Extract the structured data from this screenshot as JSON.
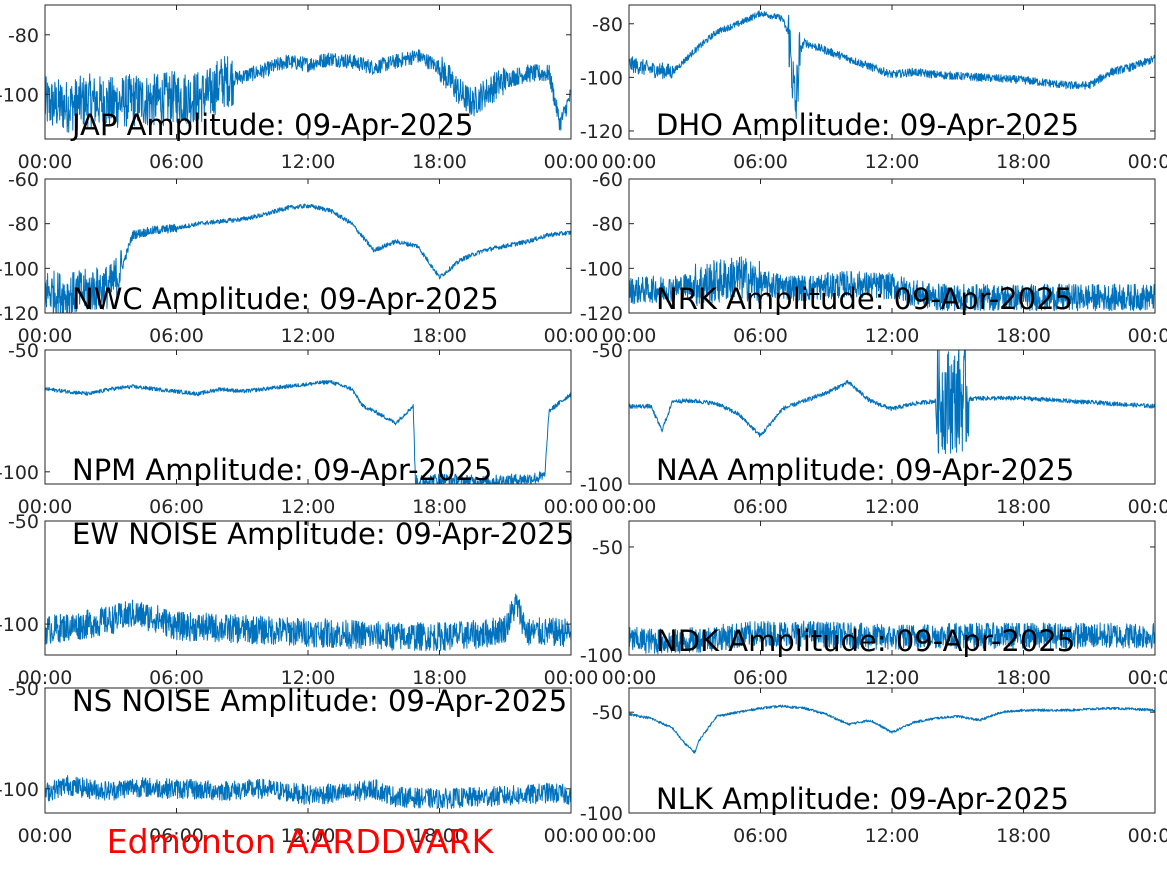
{
  "figure": {
    "station_label": "Edmonton AARDDVARK",
    "trace_color": "#0072bd",
    "station_color": "#ff0000"
  },
  "chart_data": [
    {
      "type": "line",
      "title": "JAP Amplitude: 09-Apr-2025",
      "xlabel": "",
      "ylabel": "",
      "xlim": [
        0,
        24
      ],
      "ylim": [
        -115,
        -70
      ],
      "xticks": [
        0,
        6,
        12,
        18,
        24
      ],
      "xtick_labels": [
        "00:00",
        "06:00",
        "12:00",
        "18:00",
        "00:00"
      ],
      "yticks": [
        -80,
        -100
      ],
      "ytick_labels": [
        "-80",
        "-100"
      ],
      "noise": [
        [
          0,
          8.6,
          9
        ],
        [
          8.6,
          18,
          2.5
        ],
        [
          18,
          21,
          5
        ],
        [
          21,
          24,
          3
        ]
      ],
      "x": [
        0,
        1,
        2,
        3,
        4,
        5,
        6,
        7,
        7.5,
        8,
        9,
        10,
        11,
        12,
        13,
        14,
        15,
        16,
        17,
        18,
        19,
        19.5,
        20,
        21,
        22,
        23,
        23.5,
        24
      ],
      "y": [
        -103,
        -104,
        -102,
        -103,
        -102,
        -102,
        -101,
        -101,
        -100,
        -96,
        -94,
        -92,
        -89,
        -90,
        -88,
        -89,
        -91,
        -89,
        -87,
        -91,
        -100,
        -103,
        -100,
        -95,
        -93,
        -93,
        -110,
        -100
      ]
    },
    {
      "type": "line",
      "title": "DHO Amplitude: 09-Apr-2025",
      "xlabel": "",
      "ylabel": "",
      "xlim": [
        0,
        24
      ],
      "ylim": [
        -123,
        -73
      ],
      "xticks": [
        0,
        6,
        12,
        18,
        24
      ],
      "xtick_labels": [
        "00:00",
        "06:00",
        "12:00",
        "18:00",
        "00:00"
      ],
      "yticks": [
        -80,
        -100,
        -120
      ],
      "ytick_labels": [
        "-80",
        "-100",
        "-120"
      ],
      "noise": [
        [
          0,
          2,
          3
        ],
        [
          2,
          7.2,
          1.2
        ],
        [
          7.2,
          7.8,
          12
        ],
        [
          7.8,
          24,
          1.5
        ]
      ],
      "x": [
        0,
        1,
        2,
        3,
        4,
        5,
        6,
        7,
        7.3,
        7.6,
        7.8,
        8,
        9,
        10,
        11,
        12,
        13,
        14,
        16,
        18,
        20,
        21,
        22,
        23,
        24
      ],
      "y": [
        -95,
        -97,
        -98,
        -90,
        -83,
        -80,
        -76,
        -78,
        -85,
        -112,
        -90,
        -87,
        -90,
        -93,
        -96,
        -99,
        -98,
        -99,
        -100,
        -101,
        -103,
        -103,
        -98,
        -96,
        -93
      ]
    },
    {
      "type": "line",
      "title": "NWC Amplitude: 09-Apr-2025",
      "xlabel": "",
      "ylabel": "",
      "xlim": [
        0,
        24
      ],
      "ylim": [
        -120,
        -60
      ],
      "xticks": [
        0,
        6,
        12,
        18,
        24
      ],
      "xtick_labels": [
        "00:00",
        "06:00",
        "12:00",
        "18:00",
        "00:00"
      ],
      "yticks": [
        -60,
        -80,
        -100,
        -120
      ],
      "ytick_labels": [
        "-60",
        "-80",
        "-100",
        "-120"
      ],
      "noise": [
        [
          0,
          3.5,
          10
        ],
        [
          3.5,
          6,
          2
        ],
        [
          6,
          24,
          1
        ]
      ],
      "x": [
        0,
        1,
        2,
        3,
        3.5,
        4,
        5,
        6,
        7,
        8,
        9,
        10,
        11,
        12,
        13,
        14,
        15,
        16,
        17,
        18,
        19,
        20,
        21,
        22,
        23,
        24
      ],
      "y": [
        -110,
        -112,
        -110,
        -108,
        -100,
        -85,
        -83,
        -82,
        -80,
        -79,
        -78,
        -76,
        -73,
        -72,
        -74,
        -80,
        -92,
        -88,
        -90,
        -104,
        -96,
        -92,
        -90,
        -88,
        -85,
        -84
      ]
    },
    {
      "type": "line",
      "title": "NRK Amplitude: 09-Apr-2025",
      "xlabel": "",
      "ylabel": "",
      "xlim": [
        0,
        24
      ],
      "ylim": [
        -120,
        -60
      ],
      "xticks": [
        0,
        6,
        12,
        18,
        24
      ],
      "xtick_labels": [
        "00:00",
        "06:00",
        "12:00",
        "18:00",
        "00:00"
      ],
      "yticks": [
        -60,
        -80,
        -100,
        -120
      ],
      "ytick_labels": [
        "-60",
        "-80",
        "-100",
        "-120"
      ],
      "noise": [
        [
          0,
          3,
          6
        ],
        [
          3,
          6,
          10
        ],
        [
          6,
          12,
          6
        ],
        [
          12,
          24,
          6
        ]
      ],
      "x": [
        0,
        2,
        4,
        5,
        6,
        8,
        10,
        12,
        13,
        14,
        16,
        18,
        20,
        22,
        24
      ],
      "y": [
        -110,
        -109,
        -106,
        -104,
        -107,
        -109,
        -107,
        -108,
        -111,
        -113,
        -113,
        -113,
        -113,
        -113,
        -113
      ]
    },
    {
      "type": "line",
      "title": "NPM Amplitude: 09-Apr-2025",
      "xlabel": "",
      "ylabel": "",
      "xlim": [
        0,
        24
      ],
      "ylim": [
        -105,
        -50
      ],
      "xticks": [
        0,
        6,
        12,
        18,
        24
      ],
      "xtick_labels": [
        "00:00",
        "06:00",
        "12:00",
        "18:00",
        "00:00"
      ],
      "yticks": [
        -50,
        -100
      ],
      "ytick_labels": [
        "-50",
        "-100"
      ],
      "noise": [
        [
          0,
          16.8,
          0.8
        ],
        [
          16.8,
          22.8,
          2.5
        ],
        [
          22.8,
          24,
          1
        ]
      ],
      "x": [
        0,
        1,
        2,
        3,
        4,
        5,
        6,
        7,
        8,
        9,
        10,
        11,
        12,
        13,
        14,
        14.5,
        15,
        16,
        16.8,
        16.9,
        18,
        20,
        22,
        22.8,
        23,
        24
      ],
      "y": [
        -66,
        -67,
        -68,
        -66,
        -65,
        -66,
        -67,
        -68,
        -66,
        -67,
        -66,
        -65,
        -64,
        -63,
        -66,
        -73,
        -75,
        -80,
        -73,
        -104,
        -103,
        -104,
        -103,
        -102,
        -75,
        -68
      ]
    },
    {
      "type": "line",
      "title": "NAA Amplitude: 09-Apr-2025",
      "xlabel": "",
      "ylabel": "",
      "xlim": [
        0,
        24
      ],
      "ylim": [
        -100,
        -50
      ],
      "xticks": [
        0,
        6,
        12,
        18,
        24
      ],
      "xtick_labels": [
        "00:00",
        "06:00",
        "12:00",
        "18:00",
        "00:00"
      ],
      "yticks": [
        -50,
        -100
      ],
      "ytick_labels": [
        "-50",
        "-100"
      ],
      "noise": [
        [
          0,
          14,
          0.8
        ],
        [
          14,
          15.5,
          20
        ],
        [
          15.5,
          24,
          0.8
        ]
      ],
      "x": [
        0,
        1,
        1.5,
        2,
        3,
        4,
        5,
        5.5,
        6,
        7,
        8,
        9,
        10,
        11,
        12,
        13,
        14,
        16,
        18,
        20,
        22,
        24
      ],
      "y": [
        -71,
        -71,
        -80,
        -69,
        -69,
        -70,
        -74,
        -78,
        -82,
        -72,
        -69,
        -66,
        -62,
        -69,
        -72,
        -70,
        -69,
        -68,
        -68,
        -69,
        -70,
        -71
      ]
    },
    {
      "type": "line",
      "title": "EW NOISE Amplitude: 09-Apr-2025",
      "xlabel": "",
      "ylabel": "",
      "xlim": [
        0,
        24
      ],
      "ylim": [
        -115,
        -50
      ],
      "xticks": [
        0,
        6,
        12,
        18,
        24
      ],
      "xtick_labels": [
        "00:00",
        "06:00",
        "12:00",
        "18:00",
        "00:00"
      ],
      "yticks": [
        -50,
        -100
      ],
      "ytick_labels": [
        "-50",
        "-100"
      ],
      "noise": [
        [
          0,
          24,
          7
        ]
      ],
      "x": [
        0,
        2,
        3,
        4,
        5,
        6,
        8,
        10,
        12,
        14,
        16,
        18,
        20,
        21,
        21.5,
        22,
        23,
        24
      ],
      "y": [
        -103,
        -100,
        -98,
        -95,
        -97,
        -101,
        -102,
        -103,
        -104,
        -105,
        -106,
        -106,
        -105,
        -102,
        -90,
        -104,
        -104,
        -104
      ]
    },
    {
      "type": "line",
      "title": "NDK Amplitude: 09-Apr-2025",
      "xlabel": "",
      "ylabel": "",
      "xlim": [
        0,
        24
      ],
      "ylim": [
        -100,
        -38
      ],
      "xticks": [
        0,
        6,
        12,
        18,
        24
      ],
      "xtick_labels": [
        "00:00",
        "06:00",
        "12:00",
        "18:00",
        "00:00"
      ],
      "yticks": [
        -50,
        -100
      ],
      "ytick_labels": [
        "-50",
        "-100"
      ],
      "noise": [
        [
          0,
          24,
          6
        ]
      ],
      "x": [
        0,
        2,
        4,
        6,
        8,
        10,
        12,
        14,
        16,
        18,
        20,
        22,
        24
      ],
      "y": [
        -93,
        -94,
        -92,
        -90,
        -90,
        -91,
        -92,
        -91,
        -91,
        -91,
        -91,
        -91,
        -91
      ]
    },
    {
      "type": "line",
      "title": "NS NOISE Amplitude: 09-Apr-2025",
      "xlabel": "",
      "ylabel": "",
      "xlim": [
        0,
        24
      ],
      "ylim": [
        -112,
        -50
      ],
      "xticks": [
        0,
        6,
        12,
        18,
        24
      ],
      "xtick_labels": [
        "00:00",
        "06:00",
        "12:00",
        "18:00",
        "00:00"
      ],
      "yticks": [
        -50,
        -100
      ],
      "ytick_labels": [
        "-50",
        "-100"
      ],
      "noise": [
        [
          0,
          24,
          5
        ]
      ],
      "x": [
        0,
        1,
        2,
        3,
        4,
        6,
        8,
        10,
        12,
        14,
        15,
        16,
        18,
        20,
        22,
        23,
        24
      ],
      "y": [
        -102,
        -98,
        -100,
        -101,
        -99,
        -100,
        -101,
        -100,
        -103,
        -102,
        -100,
        -104,
        -105,
        -104,
        -103,
        -102,
        -103
      ]
    },
    {
      "type": "line",
      "title": "NLK Amplitude: 09-Apr-2025",
      "xlabel": "",
      "ylabel": "",
      "xlim": [
        0,
        24
      ],
      "ylim": [
        -100,
        -38
      ],
      "xticks": [
        0,
        6,
        12,
        18,
        24
      ],
      "xtick_labels": [
        "00:00",
        "06:00",
        "12:00",
        "18:00",
        "00:00"
      ],
      "yticks": [
        -50,
        -100
      ],
      "ytick_labels": [
        "-50",
        "-100"
      ],
      "noise": [
        [
          0,
          24,
          0.6
        ]
      ],
      "x": [
        0,
        1,
        2,
        2.5,
        3,
        3.2,
        4,
        5,
        6,
        7,
        8,
        9,
        10,
        11,
        12,
        13,
        14,
        15,
        16,
        17,
        18,
        20,
        22,
        24
      ],
      "y": [
        -51,
        -53,
        -58,
        -65,
        -70,
        -64,
        -52,
        -50,
        -48,
        -47,
        -48,
        -51,
        -56,
        -54,
        -60,
        -55,
        -53,
        -52,
        -54,
        -50,
        -49,
        -49,
        -48,
        -49
      ]
    }
  ]
}
